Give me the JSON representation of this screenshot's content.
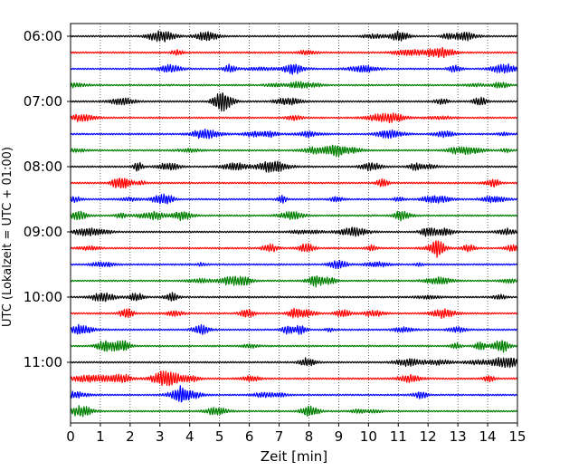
{
  "chart_data": {
    "type": "line",
    "chart_kind": "helicorder (seismogram drum plot)",
    "xlabel": "Zeit  [min]",
    "ylabel": "UTC (Lokalzeit = UTC + 01:00)",
    "xlim": [
      0,
      15
    ],
    "x_ticks": [
      "0",
      "1",
      "2",
      "3",
      "4",
      "5",
      "6",
      "7",
      "8",
      "9",
      "10",
      "11",
      "12",
      "13",
      "14",
      "15"
    ],
    "y_tick_labels": [
      "06:00",
      "07:00",
      "08:00",
      "09:00",
      "10:00",
      "11:00"
    ],
    "trace_interval_min": 15,
    "trace_colors": [
      "#000000",
      "#ff0000",
      "#0000ff",
      "#008000"
    ],
    "traces": [
      {
        "start": "06:00",
        "color": "#000000"
      },
      {
        "start": "06:15",
        "color": "#ff0000"
      },
      {
        "start": "06:30",
        "color": "#0000ff"
      },
      {
        "start": "06:45",
        "color": "#008000"
      },
      {
        "start": "07:00",
        "color": "#000000"
      },
      {
        "start": "07:15",
        "color": "#ff0000"
      },
      {
        "start": "07:30",
        "color": "#0000ff"
      },
      {
        "start": "07:45",
        "color": "#008000"
      },
      {
        "start": "08:00",
        "color": "#000000"
      },
      {
        "start": "08:15",
        "color": "#ff0000"
      },
      {
        "start": "08:30",
        "color": "#0000ff"
      },
      {
        "start": "08:45",
        "color": "#008000"
      },
      {
        "start": "09:00",
        "color": "#000000"
      },
      {
        "start": "09:15",
        "color": "#ff0000"
      },
      {
        "start": "09:30",
        "color": "#0000ff"
      },
      {
        "start": "09:45",
        "color": "#008000"
      },
      {
        "start": "10:00",
        "color": "#000000"
      },
      {
        "start": "10:15",
        "color": "#ff0000"
      },
      {
        "start": "10:30",
        "color": "#0000ff"
      },
      {
        "start": "10:45",
        "color": "#008000"
      },
      {
        "start": "11:00",
        "color": "#000000"
      },
      {
        "start": "11:15",
        "color": "#ff0000"
      },
      {
        "start": "11:30",
        "color": "#0000ff"
      },
      {
        "start": "11:45",
        "color": "#008000"
      }
    ],
    "vertical_grid": "dotted, at every minute",
    "legend": "none"
  }
}
